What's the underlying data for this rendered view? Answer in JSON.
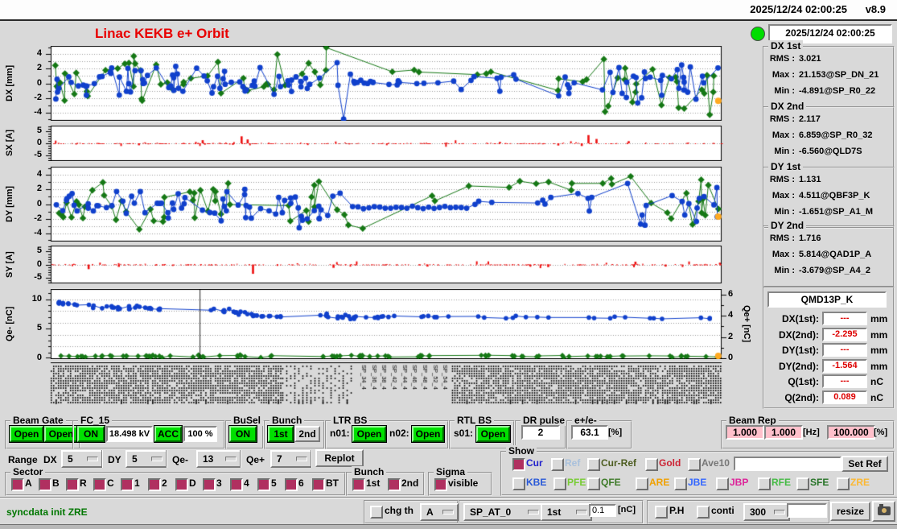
{
  "titlebar": {
    "datetime": "2025/12/24 02:00:25",
    "version": "v8.9"
  },
  "header": {
    "title": "Linac KEKB e+ Orbit",
    "status_time": "2025/12/24 02:00:25"
  },
  "charts": [
    {
      "key": "dx",
      "ylabel": "DX [mm]",
      "yticks": [
        "4",
        "2",
        "0",
        "-2",
        "-4"
      ]
    },
    {
      "key": "sx",
      "ylabel": "SX [A]",
      "yticks": [
        "5",
        "0",
        "-5"
      ]
    },
    {
      "key": "dy",
      "ylabel": "DY [mm]",
      "yticks": [
        "4",
        "2",
        "0",
        "-2",
        "-4"
      ]
    },
    {
      "key": "sy",
      "ylabel": "SY [A]",
      "yticks": [
        "5",
        "0",
        "-5"
      ]
    },
    {
      "key": "q",
      "ylabel": "Qe- [nC]",
      "yticks": [
        "10",
        "5",
        "0"
      ],
      "y2label": "Qe+ [nC]",
      "y2ticks": [
        "6",
        "4",
        "2",
        "0"
      ]
    }
  ],
  "xaxis_visible_labels": [
    "SP_34_4",
    "SP_36_4",
    "SP_38_4",
    "SP_42_4",
    "SP_44_4",
    "SP_46_4",
    "SP_48_4",
    "SP_52_4",
    "SP_54_4"
  ],
  "plot_colors": {
    "blue": "#1040cc",
    "green": "#157815",
    "red": "#ee1111",
    "orange": "#ffaa22"
  },
  "stats": [
    {
      "title": "DX 1st",
      "rms_label": "RMS :",
      "rms": "3.021",
      "max_label": "Max :",
      "max": "21.153@SP_DN_21",
      "min_label": "Min :",
      "min": "-4.891@SP_R0_22"
    },
    {
      "title": "DX 2nd",
      "rms_label": "RMS :",
      "rms": "2.117",
      "max_label": "Max :",
      "max": "6.859@SP_R0_32",
      "min_label": "Min :",
      "min": "-6.560@QLD7S"
    },
    {
      "title": "DY 1st",
      "rms_label": "RMS :",
      "rms": "1.131",
      "max_label": "Max :",
      "max": "4.511@QBF3P_K",
      "min_label": "Min :",
      "min": "-1.651@SP_A1_M"
    },
    {
      "title": "DY 2nd",
      "rms_label": "RMS :",
      "rms": "1.716",
      "max_label": "Max :",
      "max": "5.814@QAD1P_A",
      "min_label": "Min :",
      "min": "-3.679@SP_A4_2"
    }
  ],
  "monitor": {
    "name": "QMD13P_K",
    "rows": [
      {
        "label": "DX(1st):",
        "value": "---",
        "unit": "mm"
      },
      {
        "label": "DX(2nd):",
        "value": "-2.295",
        "unit": "mm"
      },
      {
        "label": "DY(1st):",
        "value": "---",
        "unit": "mm"
      },
      {
        "label": "DY(2nd):",
        "value": "-1.564",
        "unit": "mm"
      },
      {
        "label": "Q(1st):",
        "value": "---",
        "unit": "nC"
      },
      {
        "label": "Q(2nd):",
        "value": "0.089",
        "unit": "nC"
      }
    ]
  },
  "controls": {
    "beam_gate": {
      "label": "Beam Gate",
      "open1": "Open",
      "open2": "Open"
    },
    "fc15": {
      "label": "FC_15",
      "on": "ON",
      "voltage": "18.498 kV",
      "acc": "ACC",
      "percent": "100 %"
    },
    "busel": {
      "label": "BuSel",
      "on": "ON"
    },
    "bunch": {
      "label": "Bunch",
      "first": "1st",
      "second": "2nd"
    },
    "ltr_bs": {
      "label": "LTR BS",
      "n01_label": "n01:",
      "n01": "Open",
      "n02_label": "n02:",
      "n02": "Open"
    },
    "rtl_bs": {
      "label": "RTL BS",
      "s01_label": "s01:",
      "s01": "Open"
    },
    "dr_pulse": {
      "label": "DR pulse",
      "value": "2"
    },
    "ratio": {
      "label": "e+/e-",
      "value": "63.1",
      "unit": "[%]"
    },
    "beam_rep": {
      "label": "Beam Rep",
      "rep1": "1.000",
      "rep2": "1.000",
      "hz_unit": "[Hz]",
      "duty": "100.000",
      "pct_unit": "[%]"
    }
  },
  "range_row": {
    "label": "Range",
    "dx_label": "DX",
    "dx_value": "5",
    "dy_label": "DY",
    "dy_value": "5",
    "qem_label": "Qe-",
    "qem_value": "13",
    "qep_label": "Qe+",
    "qep_value": "7",
    "replot": "Replot"
  },
  "sector": {
    "label": "Sector",
    "items": [
      "A",
      "B",
      "R",
      "C",
      "1",
      "2",
      "D",
      "3",
      "4",
      "5",
      "6",
      "BT"
    ]
  },
  "bunch_sel": {
    "label": "Bunch",
    "items": [
      "1st",
      "2nd"
    ]
  },
  "sigma": {
    "label": "Sigma",
    "items": [
      "visible"
    ]
  },
  "show": {
    "label": "Show",
    "primary": [
      {
        "label": "Cur",
        "color": "#2222cc",
        "checked": true
      },
      {
        "label": "Ref",
        "color": "#a8c0dc",
        "checked": false
      },
      {
        "label": "Cur-Ref",
        "color": "#4d5d20",
        "checked": false
      },
      {
        "label": "Gold",
        "color": "#cc2233",
        "checked": false
      },
      {
        "label": "Ave10",
        "color": "#777777",
        "checked": false
      }
    ],
    "ref_input_value": "",
    "set_ref": "Set Ref",
    "beamlines": [
      {
        "label": "KBE",
        "color": "#2858d8",
        "checked": false
      },
      {
        "label": "PFE",
        "color": "#77cc33",
        "checked": false
      },
      {
        "label": "QFE",
        "color": "#3d7a28",
        "checked": false
      },
      {
        "label": "ARE",
        "color": "#f0a000",
        "checked": false
      },
      {
        "label": "JBE",
        "color": "#3366ff",
        "checked": false
      },
      {
        "label": "JBP",
        "color": "#dd2299",
        "checked": false
      },
      {
        "label": "RFE",
        "color": "#44bb44",
        "checked": false
      },
      {
        "label": "SFE",
        "color": "#267326",
        "checked": false
      },
      {
        "label": "ZRE",
        "color": "#fbb833",
        "checked": false
      }
    ]
  },
  "statusbar": {
    "message": "syncdata init ZRE",
    "chg_th_label": "chg th",
    "chg_th_value": "A",
    "sp_value": "SP_AT_0",
    "bunch_value": "1st",
    "threshold_value": "0.1",
    "threshold_unit": "[nC]",
    "ph_label": "P.H",
    "conti_label": "conti",
    "count_value": "300",
    "extra_value": "",
    "resize": "resize"
  }
}
